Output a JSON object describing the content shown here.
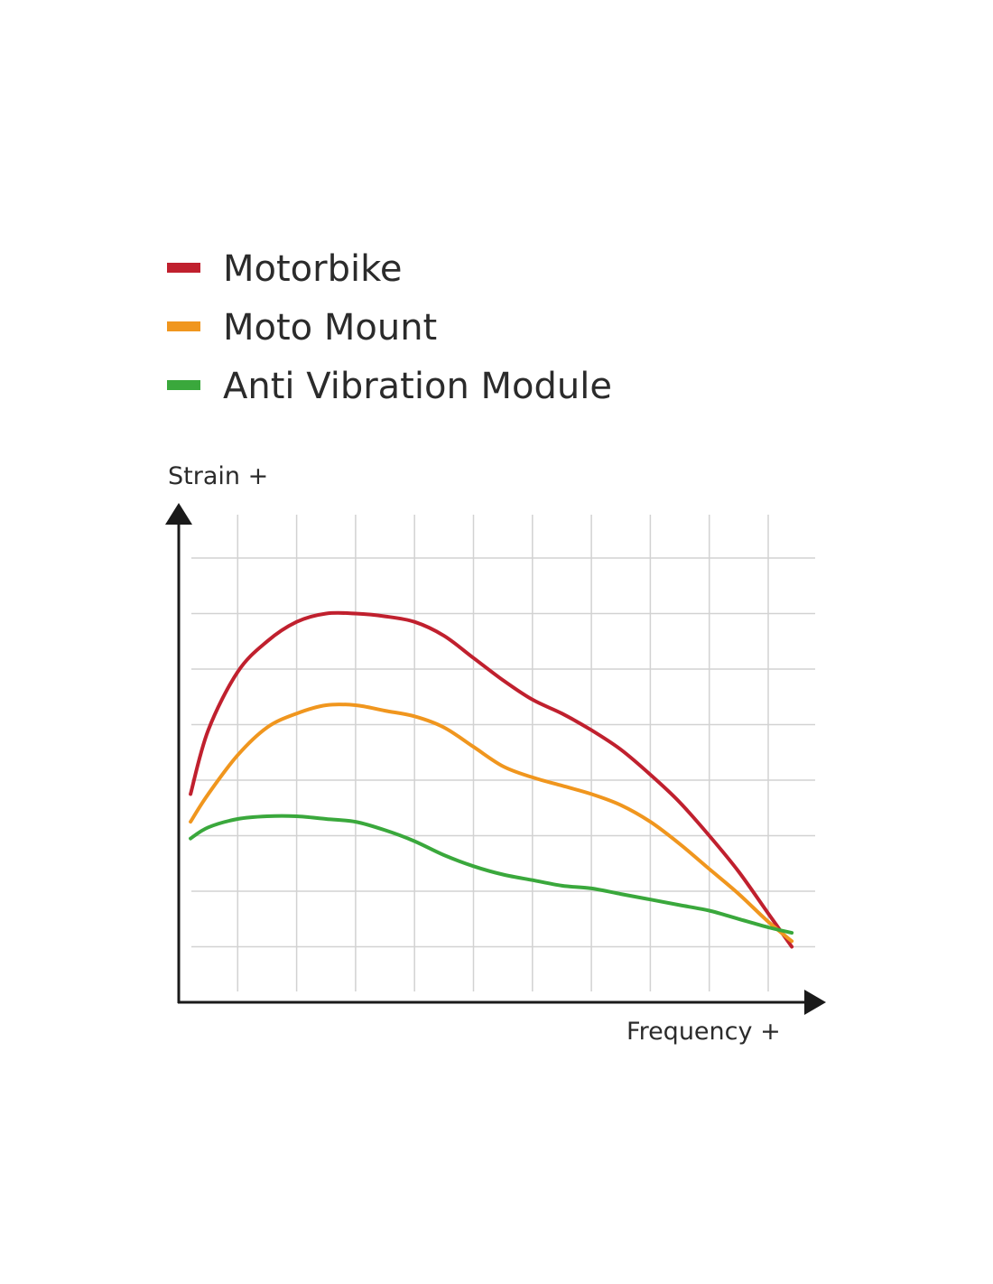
{
  "legend": {
    "motorbike": "Motorbike",
    "moto_mount": "Moto Mount",
    "anti_vibration": "Anti Vibration Module"
  },
  "axes": {
    "y_label": "Strain +",
    "x_label": "Frequency +"
  },
  "colors": {
    "motorbike": "#c0202e",
    "moto_mount": "#f0961e",
    "anti_vibration": "#3aa83c",
    "grid": "#d2d2d2",
    "axis": "#1a1a1a"
  },
  "chart_data": {
    "type": "line",
    "xlabel": "Frequency +",
    "ylabel": "Strain +",
    "x_range": [
      0,
      10.6
    ],
    "y_range": [
      0,
      8
    ],
    "grid": true,
    "legend_position": "top-left",
    "series": [
      {
        "name": "Motorbike",
        "color": "#c0202e",
        "points": [
          [
            0.2,
            3.75
          ],
          [
            0.5,
            4.9
          ],
          [
            1.0,
            5.95
          ],
          [
            1.5,
            6.5
          ],
          [
            2.0,
            6.85
          ],
          [
            2.5,
            7.0
          ],
          [
            3.0,
            7.0
          ],
          [
            3.5,
            6.95
          ],
          [
            4.0,
            6.85
          ],
          [
            4.5,
            6.6
          ],
          [
            5.0,
            6.2
          ],
          [
            5.5,
            5.8
          ],
          [
            6.0,
            5.45
          ],
          [
            6.5,
            5.2
          ],
          [
            7.0,
            4.9
          ],
          [
            7.5,
            4.55
          ],
          [
            8.0,
            4.1
          ],
          [
            8.5,
            3.6
          ],
          [
            9.0,
            3.0
          ],
          [
            9.5,
            2.35
          ],
          [
            10.0,
            1.6
          ],
          [
            10.4,
            1.0
          ]
        ]
      },
      {
        "name": "Moto Mount",
        "color": "#f0961e",
        "points": [
          [
            0.2,
            3.25
          ],
          [
            0.5,
            3.75
          ],
          [
            1.0,
            4.45
          ],
          [
            1.5,
            4.95
          ],
          [
            2.0,
            5.2
          ],
          [
            2.5,
            5.35
          ],
          [
            3.0,
            5.35
          ],
          [
            3.5,
            5.25
          ],
          [
            4.0,
            5.15
          ],
          [
            4.5,
            4.95
          ],
          [
            5.0,
            4.6
          ],
          [
            5.5,
            4.25
          ],
          [
            6.0,
            4.05
          ],
          [
            6.5,
            3.9
          ],
          [
            7.0,
            3.75
          ],
          [
            7.5,
            3.55
          ],
          [
            8.0,
            3.25
          ],
          [
            8.5,
            2.85
          ],
          [
            9.0,
            2.4
          ],
          [
            9.5,
            1.95
          ],
          [
            10.0,
            1.45
          ],
          [
            10.4,
            1.1
          ]
        ]
      },
      {
        "name": "Anti Vibration Module",
        "color": "#3aa83c",
        "points": [
          [
            0.2,
            2.95
          ],
          [
            0.5,
            3.15
          ],
          [
            1.0,
            3.3
          ],
          [
            1.5,
            3.35
          ],
          [
            2.0,
            3.35
          ],
          [
            2.5,
            3.3
          ],
          [
            3.0,
            3.25
          ],
          [
            3.5,
            3.1
          ],
          [
            4.0,
            2.9
          ],
          [
            4.5,
            2.65
          ],
          [
            5.0,
            2.45
          ],
          [
            5.5,
            2.3
          ],
          [
            6.0,
            2.2
          ],
          [
            6.5,
            2.1
          ],
          [
            7.0,
            2.05
          ],
          [
            7.5,
            1.95
          ],
          [
            8.0,
            1.85
          ],
          [
            8.5,
            1.75
          ],
          [
            9.0,
            1.65
          ],
          [
            9.5,
            1.5
          ],
          [
            10.0,
            1.35
          ],
          [
            10.4,
            1.25
          ]
        ]
      }
    ]
  }
}
